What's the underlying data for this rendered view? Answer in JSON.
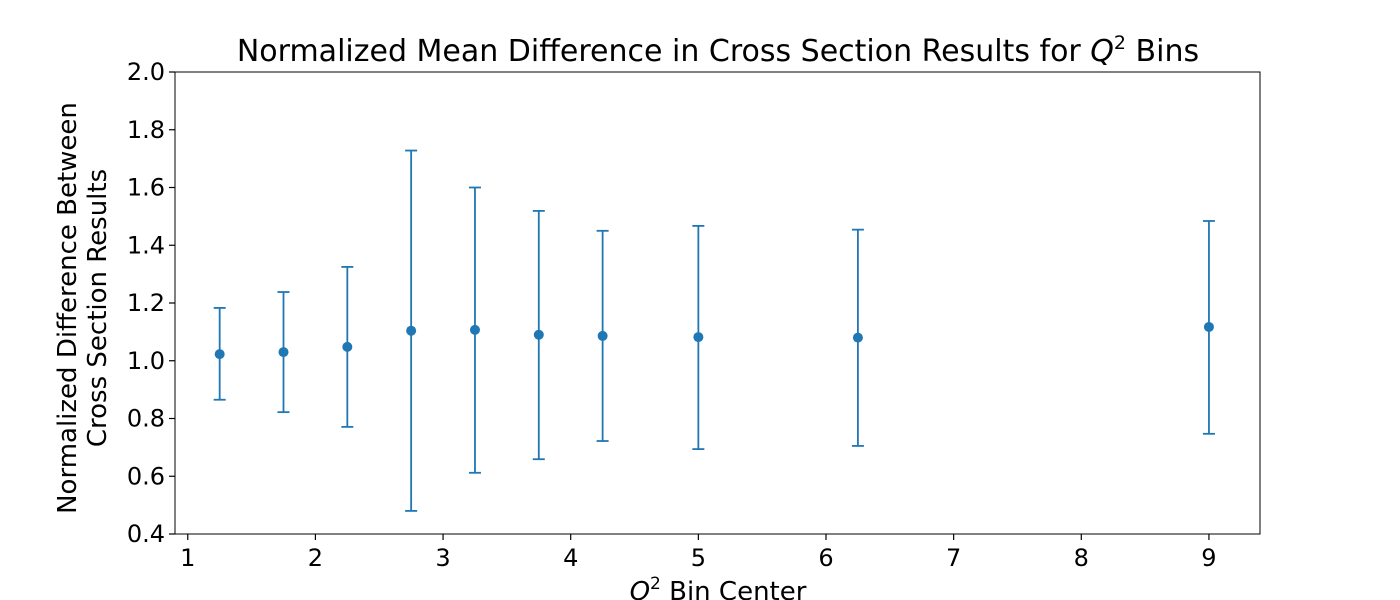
{
  "chart_data": {
    "type": "scatter",
    "title": "Normalized Mean Difference in Cross Section Results for Q² Bins",
    "title_parts": {
      "prefix": "Normalized Mean Difference in Cross Section Results for ",
      "symbol": "Q",
      "exponent": "2",
      "suffix": " Bins"
    },
    "xlabel": "Q² Bin Center",
    "xlabel_parts": {
      "symbol": "Q",
      "exponent": "2",
      "suffix": " Bin Center"
    },
    "ylabel": "Normalized Difference Between Cross Section Results",
    "ylabel_lines": [
      "Normalized Difference Between",
      "Cross Section Results"
    ],
    "xlim": [
      0.9,
      9.4
    ],
    "ylim": [
      0.4,
      2.0
    ],
    "xticks": [
      1,
      2,
      3,
      4,
      5,
      6,
      7,
      8,
      9
    ],
    "xtick_labels": [
      "1",
      "2",
      "3",
      "4",
      "5",
      "6",
      "7",
      "8",
      "9"
    ],
    "yticks": [
      0.4,
      0.6,
      0.8,
      1.0,
      1.2,
      1.4,
      1.6,
      1.8,
      2.0
    ],
    "ytick_labels": [
      "0.4",
      "0.6",
      "0.8",
      "1.0",
      "1.2",
      "1.4",
      "1.6",
      "1.8",
      "2.0"
    ],
    "grid": false,
    "legend": "none",
    "color": "#1f77b4",
    "x": [
      1.25,
      1.75,
      2.25,
      2.75,
      3.25,
      3.75,
      4.25,
      5.0,
      6.25,
      9.0
    ],
    "y": [
      1.023,
      1.03,
      1.048,
      1.104,
      1.107,
      1.09,
      1.086,
      1.082,
      1.08,
      1.117
    ],
    "yerr_lower": [
      0.865,
      0.822,
      0.771,
      0.48,
      0.612,
      0.659,
      0.722,
      0.694,
      0.705,
      0.747
    ],
    "yerr_upper": [
      1.183,
      1.238,
      1.325,
      1.728,
      1.6,
      1.519,
      1.45,
      1.467,
      1.454,
      1.484
    ]
  }
}
